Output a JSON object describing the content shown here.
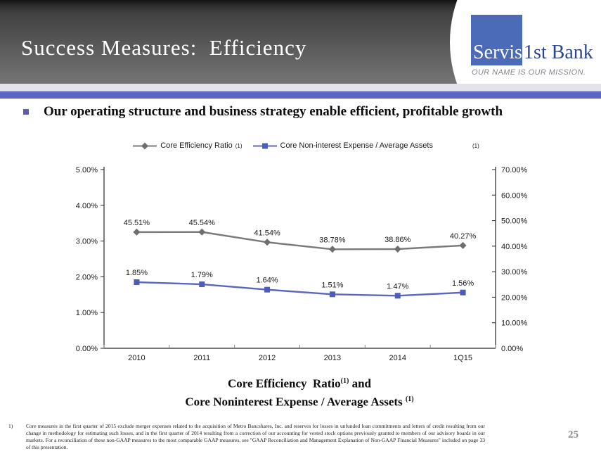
{
  "slide": {
    "title": "Success Measures:  Efficiency",
    "page_number": "25"
  },
  "logo": {
    "name_part1": "Servis",
    "name_part2": "1st Bank",
    "tagline": "OUR NAME IS OUR MISSION.",
    "square_color": "#4b6ab8",
    "bank_text_color": "#2b4590"
  },
  "theme": {
    "blue_bar_color": "#5b66c7",
    "bullet_color": "#6060aa"
  },
  "bullet": {
    "text": "Our operating structure and business strategy enable efficient, profitable growth"
  },
  "chart_data": {
    "type": "line",
    "categories": [
      "2010",
      "2011",
      "2012",
      "2013",
      "2014",
      "1Q15"
    ],
    "series": [
      {
        "name": "Core Efficiency Ratio",
        "superscript": "(1)",
        "axis": "right",
        "color": "#7a7a7a",
        "marker": "diamond",
        "marker_color": "#6e6e6e",
        "values": [
          45.51,
          45.54,
          41.54,
          38.78,
          38.86,
          40.27
        ],
        "labels": [
          "45.51%",
          "45.54%",
          "41.54%",
          "38.78%",
          "38.86%",
          "40.27%"
        ]
      },
      {
        "name": "Core Non-interest Expense / Average Assets",
        "superscript": "(1)",
        "axis": "left",
        "color": "#5a66c2",
        "marker": "square",
        "marker_color": "#4d5cb5",
        "values": [
          1.85,
          1.79,
          1.64,
          1.51,
          1.47,
          1.56
        ],
        "labels": [
          "1.85%",
          "1.79%",
          "1.64%",
          "1.51%",
          "1.47%",
          "1.56%"
        ]
      }
    ],
    "left_axis": {
      "min": 0,
      "max": 5,
      "step": 1,
      "ticks": [
        "0.00%",
        "1.00%",
        "2.00%",
        "3.00%",
        "4.00%",
        "5.00%"
      ]
    },
    "right_axis": {
      "min": 0,
      "max": 70,
      "step": 10,
      "ticks": [
        "0.00%",
        "10.00%",
        "20.00%",
        "30.00%",
        "40.00%",
        "50.00%",
        "60.00%",
        "70.00%"
      ]
    },
    "grid": "off",
    "legend_position": "top-center",
    "title_line1": "Core Efficiency  Ratio",
    "title_sup1": "(1)",
    "title_and": " and",
    "title_line2": "Core Noninterest Expense / Average Assets ",
    "title_sup2": "(1)"
  },
  "footnote": {
    "marker": "1)",
    "text": "Core measures in the first quarter of 2015 exclude merger expenses related to the acquisition of Metro Bancshares, Inc. and reserves for losses in unfunded loan commitments and letters of credit resulting from our change in methodology for estimating such losses, and in the first quarter of 2014 resulting from a correction of our accounting for vested stock options previously granted to members of our advisory boards in our markets.  For a reconciliation of these non-GAAP measures to the most comparable GAAP measures, see \"GAAP Reconciliation and Management Explanation of Non-GAAP Financial Measures\" included on page 33 of this presentation."
  }
}
